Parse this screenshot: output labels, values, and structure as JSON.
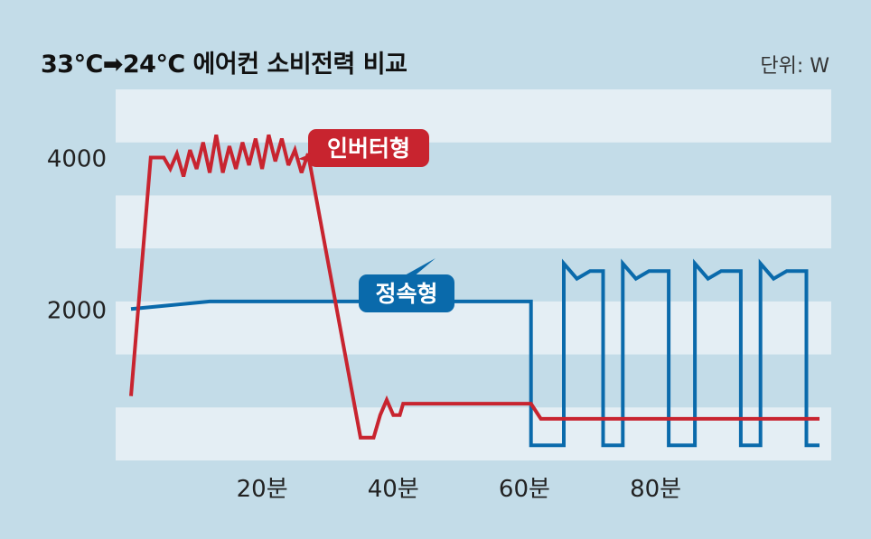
{
  "chart_data": {
    "type": "line",
    "title": "33℃➡24℃ 에어컨 소비전력 비교",
    "unit_label": "단위: W",
    "y_ticks": [
      {
        "value": 4000,
        "label": "4000"
      },
      {
        "value": 2000,
        "label": "2000"
      }
    ],
    "x_ticks": [
      {
        "value": 20,
        "label": "20분"
      },
      {
        "value": 40,
        "label": "40분"
      },
      {
        "value": 60,
        "label": "60분"
      },
      {
        "value": 80,
        "label": "80분"
      }
    ],
    "xlim": [
      0,
      105
    ],
    "ylim": [
      0,
      4650
    ],
    "grid": "horizontal bands",
    "colors": {
      "inverter": "#c8242f",
      "constant": "#0a6aab",
      "band": "#e4eef4"
    },
    "series": [
      {
        "name": "인버터형",
        "color": "#c8242f",
        "points": [
          [
            0,
            850
          ],
          [
            3,
            4000
          ],
          [
            5,
            4000
          ],
          [
            6,
            3850
          ],
          [
            7,
            4050
          ],
          [
            8,
            3750
          ],
          [
            9,
            4100
          ],
          [
            10,
            3850
          ],
          [
            11,
            4200
          ],
          [
            12,
            3800
          ],
          [
            13,
            4300
          ],
          [
            14,
            3800
          ],
          [
            15,
            4150
          ],
          [
            16,
            3850
          ],
          [
            17,
            4200
          ],
          [
            18,
            3900
          ],
          [
            19,
            4250
          ],
          [
            20,
            3850
          ],
          [
            21,
            4300
          ],
          [
            22,
            3950
          ],
          [
            23,
            4250
          ],
          [
            24,
            3900
          ],
          [
            25,
            4100
          ],
          [
            26,
            3800
          ],
          [
            27,
            4050
          ],
          [
            35,
            300
          ],
          [
            36.5,
            300
          ],
          [
            37,
            300
          ],
          [
            38,
            600
          ],
          [
            39,
            800
          ],
          [
            40,
            600
          ],
          [
            41,
            600
          ],
          [
            41.5,
            750
          ],
          [
            61,
            750
          ],
          [
            62.5,
            550
          ],
          [
            105,
            550
          ]
        ]
      },
      {
        "name": "정속형",
        "color": "#0a6aab",
        "points": [
          [
            0,
            2000
          ],
          [
            12,
            2100
          ],
          [
            61,
            2100
          ],
          [
            61,
            200
          ],
          [
            66,
            200
          ],
          [
            66,
            2600
          ],
          [
            68,
            2400
          ],
          [
            70,
            2500
          ],
          [
            72,
            2500
          ],
          [
            72,
            200
          ],
          [
            75,
            200
          ],
          [
            75,
            2600
          ],
          [
            77,
            2400
          ],
          [
            79,
            2500
          ],
          [
            82,
            2500
          ],
          [
            82,
            200
          ],
          [
            86,
            200
          ],
          [
            86,
            2600
          ],
          [
            88,
            2400
          ],
          [
            90,
            2500
          ],
          [
            93,
            2500
          ],
          [
            93,
            200
          ],
          [
            96,
            200
          ],
          [
            96,
            2600
          ],
          [
            98,
            2400
          ],
          [
            100,
            2500
          ],
          [
            103,
            2500
          ],
          [
            103,
            200
          ],
          [
            105,
            200
          ]
        ]
      }
    ]
  }
}
